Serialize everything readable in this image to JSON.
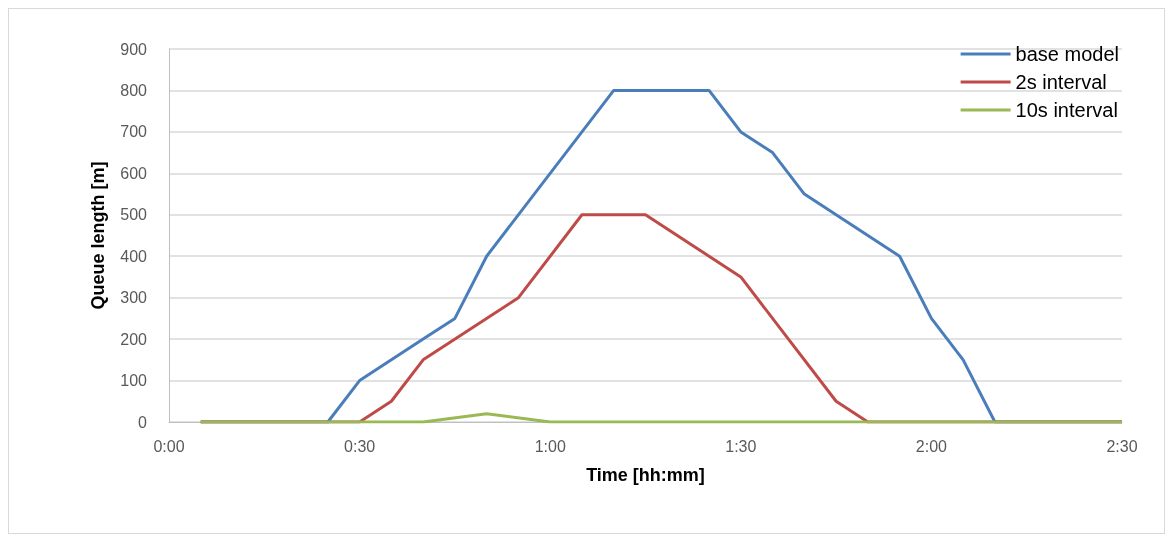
{
  "chart_data": {
    "type": "line",
    "xlabel": "Time [hh:mm]",
    "ylabel": "Queue length [m]",
    "xlim": [
      0,
      2.5
    ],
    "xticks": [
      {
        "value": 0,
        "label": "0:00"
      },
      {
        "value": 0.5,
        "label": "0:30"
      },
      {
        "value": 1,
        "label": "1:00"
      },
      {
        "value": 1.5,
        "label": "1:30"
      },
      {
        "value": 2,
        "label": "2:00"
      },
      {
        "value": 2.5,
        "label": "2:30"
      }
    ],
    "ylim": [
      0,
      900
    ],
    "yticks": [
      0,
      100,
      200,
      300,
      400,
      500,
      600,
      700,
      800,
      900
    ],
    "grid": "y",
    "legend": "top right",
    "marker": "none",
    "line_style": "solid",
    "series": [
      {
        "name": "base model",
        "color": "#4a7ebb",
        "x": [
          0.0833,
          0.4167,
          0.5,
          0.6667,
          0.75,
          0.8333,
          1.1667,
          1.4167,
          1.5,
          1.5833,
          1.6667,
          1.9167,
          2,
          2.0833,
          2.1667,
          2.5
        ],
        "values": [
          0,
          0,
          100,
          200,
          250,
          400,
          800,
          800,
          700,
          650,
          550,
          400,
          250,
          150,
          0,
          0
        ]
      },
      {
        "name": "2s interval",
        "color": "#be4b48",
        "x": [
          0.0833,
          0.5,
          0.5833,
          0.6667,
          0.9167,
          1.0833,
          1.25,
          1.5,
          1.75,
          1.8333,
          2.5
        ],
        "values": [
          0,
          0,
          50,
          150,
          300,
          500,
          500,
          350,
          50,
          0,
          0
        ]
      },
      {
        "name": "10s interval",
        "color": "#98b954",
        "x": [
          0.0833,
          0.6667,
          0.8333,
          1,
          2.5
        ],
        "values": [
          0,
          0,
          20,
          0,
          0
        ]
      }
    ]
  }
}
